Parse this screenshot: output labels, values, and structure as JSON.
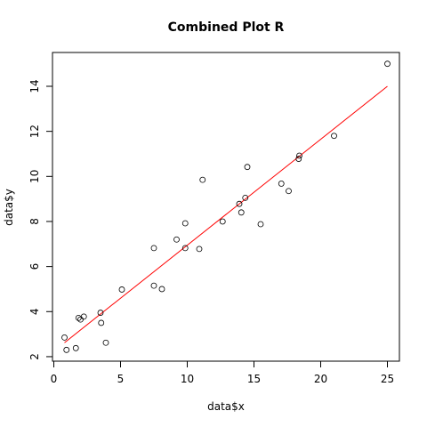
{
  "chart_data": {
    "type": "scatter",
    "title": "Combined Plot R",
    "xlabel": "data$x",
    "ylabel": "data$y",
    "xlim": [
      -0.1,
      25.9
    ],
    "ylim": [
      1.8,
      15.5
    ],
    "xticks": [
      0,
      5,
      10,
      15,
      20,
      25
    ],
    "yticks": [
      2,
      4,
      6,
      8,
      10,
      12,
      14
    ],
    "grid": false,
    "points": [
      {
        "x": 0.8,
        "y": 2.85
      },
      {
        "x": 0.95,
        "y": 2.3
      },
      {
        "x": 1.65,
        "y": 2.38
      },
      {
        "x": 1.85,
        "y": 3.72
      },
      {
        "x": 2.0,
        "y": 3.65
      },
      {
        "x": 2.25,
        "y": 3.78
      },
      {
        "x": 3.5,
        "y": 3.95
      },
      {
        "x": 3.55,
        "y": 3.5
      },
      {
        "x": 3.9,
        "y": 2.62
      },
      {
        "x": 5.1,
        "y": 4.98
      },
      {
        "x": 7.5,
        "y": 6.82
      },
      {
        "x": 7.5,
        "y": 5.15
      },
      {
        "x": 8.1,
        "y": 5.0
      },
      {
        "x": 9.2,
        "y": 7.2
      },
      {
        "x": 9.85,
        "y": 7.92
      },
      {
        "x": 9.85,
        "y": 6.82
      },
      {
        "x": 10.9,
        "y": 6.78
      },
      {
        "x": 11.15,
        "y": 9.85
      },
      {
        "x": 12.65,
        "y": 8.0
      },
      {
        "x": 13.9,
        "y": 8.78
      },
      {
        "x": 14.05,
        "y": 8.4
      },
      {
        "x": 14.35,
        "y": 9.05
      },
      {
        "x": 14.5,
        "y": 10.42
      },
      {
        "x": 15.5,
        "y": 7.88
      },
      {
        "x": 17.05,
        "y": 9.68
      },
      {
        "x": 17.6,
        "y": 9.35
      },
      {
        "x": 18.35,
        "y": 10.78
      },
      {
        "x": 18.4,
        "y": 10.92
      },
      {
        "x": 21.0,
        "y": 11.8
      },
      {
        "x": 25.0,
        "y": 15.0
      }
    ],
    "fit_line": {
      "x": [
        0.8,
        25.0
      ],
      "y": [
        2.62,
        14.0
      ],
      "color": "#ff0000"
    }
  }
}
